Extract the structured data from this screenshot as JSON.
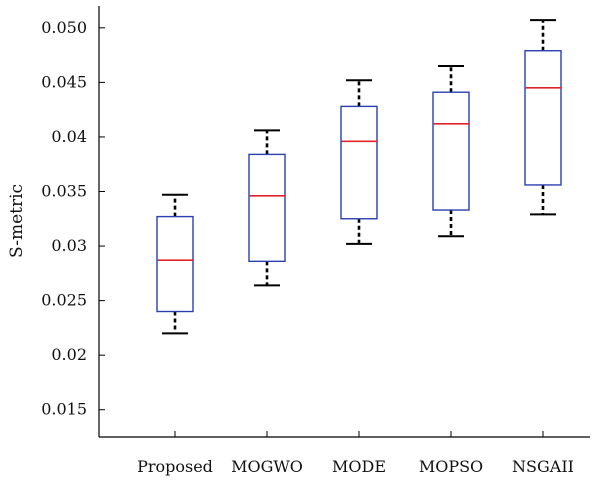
{
  "chart_data": {
    "type": "boxplot",
    "ylabel": "S-metric",
    "xlabel": "",
    "ylim": [
      0.0125,
      0.052
    ],
    "yticks": [
      0.015,
      0.02,
      0.025,
      0.03,
      0.035,
      0.04,
      0.045,
      0.05
    ],
    "ytick_labels": [
      "0.015",
      "0.02",
      "0.025",
      "0.03",
      "0.035",
      "0.04",
      "0.045",
      "0.050"
    ],
    "categories": [
      "Proposed",
      "MOGWO",
      "MODE",
      "MOPSO",
      "NSGAII"
    ],
    "boxes": [
      {
        "min": 0.022,
        "q1": 0.024,
        "median": 0.0287,
        "q3": 0.0327,
        "max": 0.0347
      },
      {
        "min": 0.0264,
        "q1": 0.0286,
        "median": 0.0346,
        "q3": 0.0384,
        "max": 0.0406
      },
      {
        "min": 0.0302,
        "q1": 0.0325,
        "median": 0.0396,
        "q3": 0.0428,
        "max": 0.0452
      },
      {
        "min": 0.0309,
        "q1": 0.0333,
        "median": 0.0412,
        "q3": 0.0441,
        "max": 0.0465
      },
      {
        "min": 0.0329,
        "q1": 0.0356,
        "median": 0.0445,
        "q3": 0.0479,
        "max": 0.0507
      }
    ],
    "grid": false,
    "colors": {
      "box": "#2b3fb0",
      "median": "#e0252a",
      "whisker": "#000000"
    }
  }
}
